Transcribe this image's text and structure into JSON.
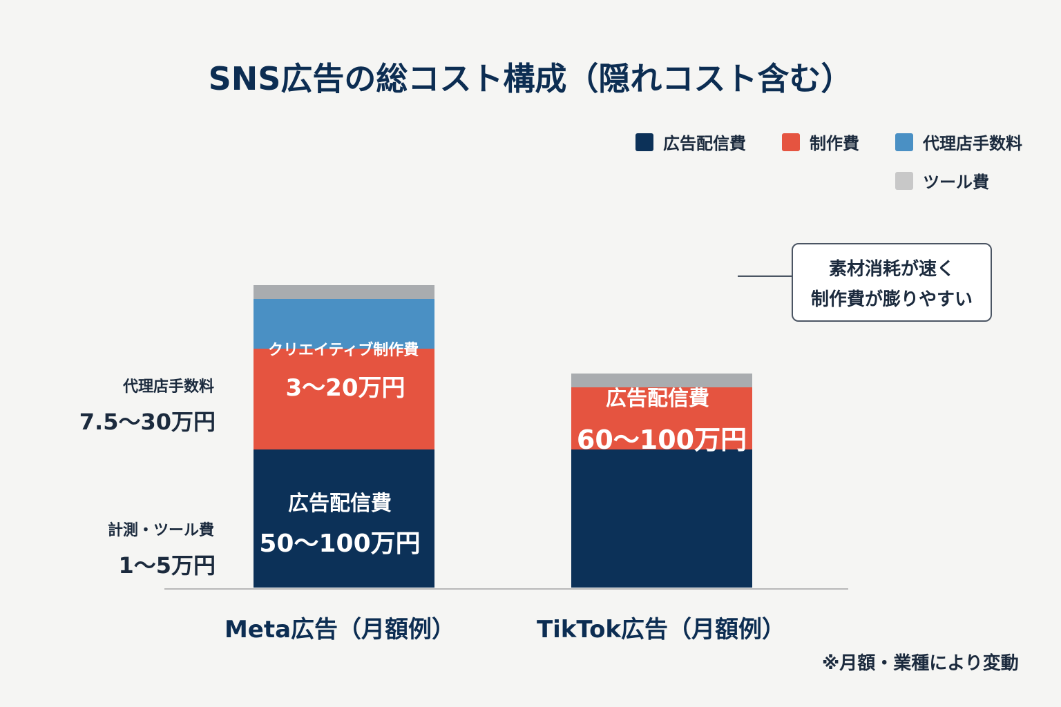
{
  "chart_data": {
    "type": "bar",
    "stacked": true,
    "title": "SNS広告の総コスト構成（隠れコスト含む）",
    "categories": [
      "Meta広告（月額例）",
      "TikTok広告（月額例）"
    ],
    "series": [
      {
        "name": "広告配信費",
        "color": "#0c3158",
        "values": [
          100,
          100
        ]
      },
      {
        "name": "制作費",
        "color": "#e55440",
        "values": [
          73,
          45
        ]
      },
      {
        "name": "代理店手数料",
        "color": "#4a90c4",
        "values": [
          36,
          0
        ]
      },
      {
        "name": "ツール費",
        "color": "#a9acaf",
        "values": [
          10,
          10
        ]
      }
    ],
    "legend": {
      "placement": "top-right",
      "items": [
        {
          "label": "広告配信費",
          "color": "#0c3158"
        },
        {
          "label": "制作費",
          "color": "#e55440"
        },
        {
          "label": "代理店手数料",
          "color": "#4a90c4"
        },
        {
          "label": "ツール費",
          "color": "#c8c8c8"
        }
      ]
    },
    "segment_labels": {
      "meta_creative_name": "クリエイティブ制作費",
      "meta_creative_value": "3～20万円",
      "meta_delivery_name": "広告配信費",
      "meta_delivery_value": "50～100万円",
      "tiktok_delivery_name": "広告配信費",
      "tiktok_delivery_value": "60～100万円"
    },
    "side_labels": {
      "agency_name": "代理店手数料",
      "agency_value": "7.5～30万円",
      "tool_name": "計測・ツール費",
      "tool_value": "1～5万円"
    },
    "annotation": {
      "line1": "素材消耗が速く",
      "line2": "制作費が膨りやすい"
    },
    "footnote": "※月額・業種により変動",
    "grid": false
  }
}
